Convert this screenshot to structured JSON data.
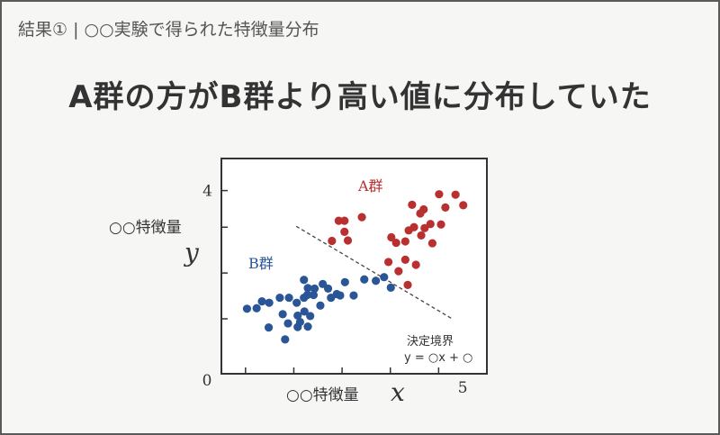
{
  "header": {
    "breadcrumb": "結果① | ○○実験で得られた特徴量分布",
    "headline": "A群の方がB群より高い値に分布していた"
  },
  "chart_data": {
    "type": "scatter",
    "xlabel": "○○特徴量",
    "xlabel_symbol": "x",
    "ylabel": "○○特徴量",
    "ylabel_symbol": "y",
    "x_ticks": [
      {
        "value": 0,
        "label": "0"
      },
      {
        "value": 5,
        "label": "5"
      }
    ],
    "y_ticks": [
      {
        "value": 4,
        "label": "4"
      }
    ],
    "xlim": [
      0,
      5.5
    ],
    "ylim": [
      0,
      4.7
    ],
    "grid": false,
    "series": [
      {
        "name": "A群",
        "color": "#b83030",
        "points": [
          [
            2.29,
            2.9
          ],
          [
            2.43,
            3.34
          ],
          [
            2.55,
            3.34
          ],
          [
            2.55,
            3.1
          ],
          [
            2.62,
            2.91
          ],
          [
            2.91,
            3.42
          ],
          [
            3.46,
            2.44
          ],
          [
            3.52,
            2.98
          ],
          [
            3.62,
            2.86
          ],
          [
            3.67,
            2.24
          ],
          [
            3.81,
            2.89
          ],
          [
            3.81,
            2.49
          ],
          [
            3.88,
            3.13
          ],
          [
            3.95,
            3.69
          ],
          [
            3.99,
            3.2
          ],
          [
            4.03,
            2.38
          ],
          [
            4.12,
            3.5
          ],
          [
            4.14,
            3.02
          ],
          [
            4.19,
            3.59
          ],
          [
            4.21,
            3.18
          ],
          [
            4.33,
            3.27
          ],
          [
            4.37,
            2.85
          ],
          [
            4.51,
            3.92
          ],
          [
            4.55,
            3.26
          ],
          [
            4.64,
            3.63
          ],
          [
            4.85,
            3.91
          ],
          [
            5.01,
            3.68
          ],
          [
            3.86,
            1.94
          ]
        ]
      },
      {
        "name": "B群",
        "color": "#2a5596",
        "points": [
          [
            0.53,
            1.42
          ],
          [
            0.73,
            1.43
          ],
          [
            0.84,
            1.58
          ],
          [
            0.99,
            1.55
          ],
          [
            1.21,
            1.66
          ],
          [
            1.27,
            1.3
          ],
          [
            1.38,
            1.1
          ],
          [
            1.4,
            1.66
          ],
          [
            1.56,
            1.55
          ],
          [
            1.58,
            1.27
          ],
          [
            1.71,
            1.66
          ],
          [
            1.72,
            1.36
          ],
          [
            1.71,
            2.05
          ],
          [
            1.78,
            1.72
          ],
          [
            1.79,
            1.87
          ],
          [
            1.84,
            1.26
          ],
          [
            1.91,
            1.72
          ],
          [
            1.93,
            1.86
          ],
          [
            2.05,
            1.49
          ],
          [
            2.1,
            1.96
          ],
          [
            2.21,
            1.86
          ],
          [
            2.27,
            1.66
          ],
          [
            2.39,
            1.74
          ],
          [
            2.46,
            1.71
          ],
          [
            2.56,
            2.0
          ],
          [
            2.74,
            1.71
          ],
          [
            2.96,
            2.06
          ],
          [
            3.2,
            2.03
          ],
          [
            3.37,
            2.11
          ],
          [
            3.51,
            1.88
          ],
          [
            0.98,
            1.01
          ],
          [
            1.32,
            0.75
          ],
          [
            1.58,
            1.02
          ],
          [
            1.63,
            1.13
          ],
          [
            1.79,
            1.03
          ]
        ]
      }
    ],
    "annotations": {
      "group_a_label": "A群",
      "group_b_label": "B群",
      "boundary_label": "決定境界",
      "boundary_equation": "y = ○x + ○"
    },
    "boundary_line": {
      "from": [
        1.55,
        3.22
      ],
      "to": [
        4.78,
        1.2
      ],
      "style": "dashed"
    }
  }
}
